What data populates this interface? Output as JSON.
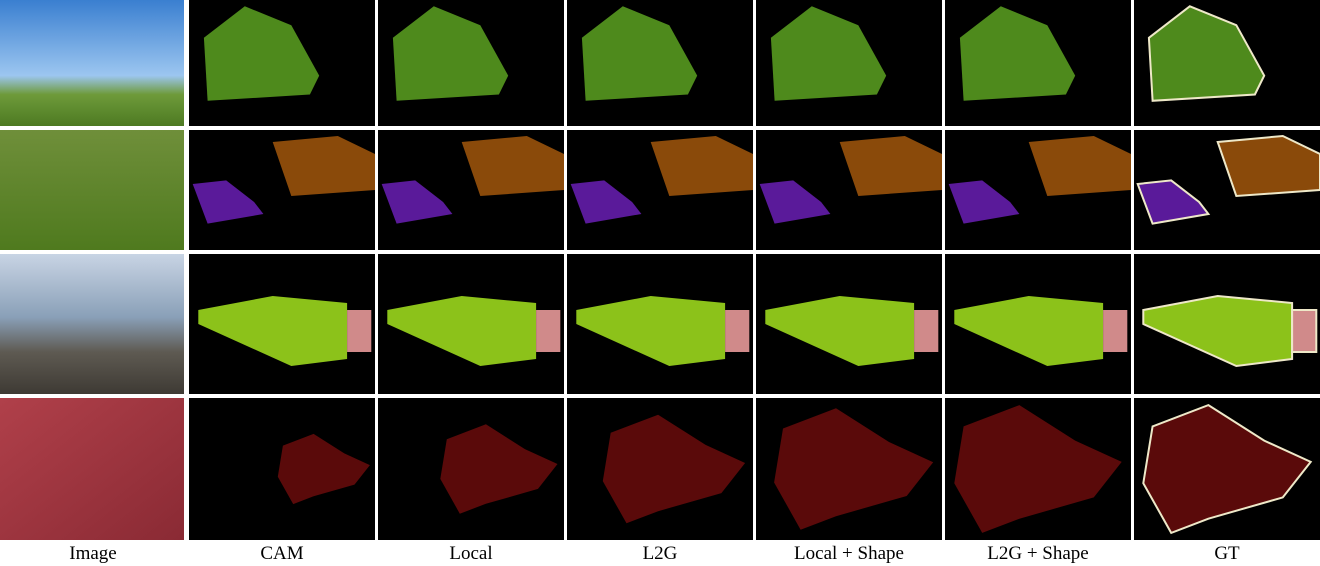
{
  "columns": [
    "Image",
    "CAM",
    "Local",
    "L2G",
    "Local + Shape",
    "L2G + Shape",
    "GT"
  ]
}
